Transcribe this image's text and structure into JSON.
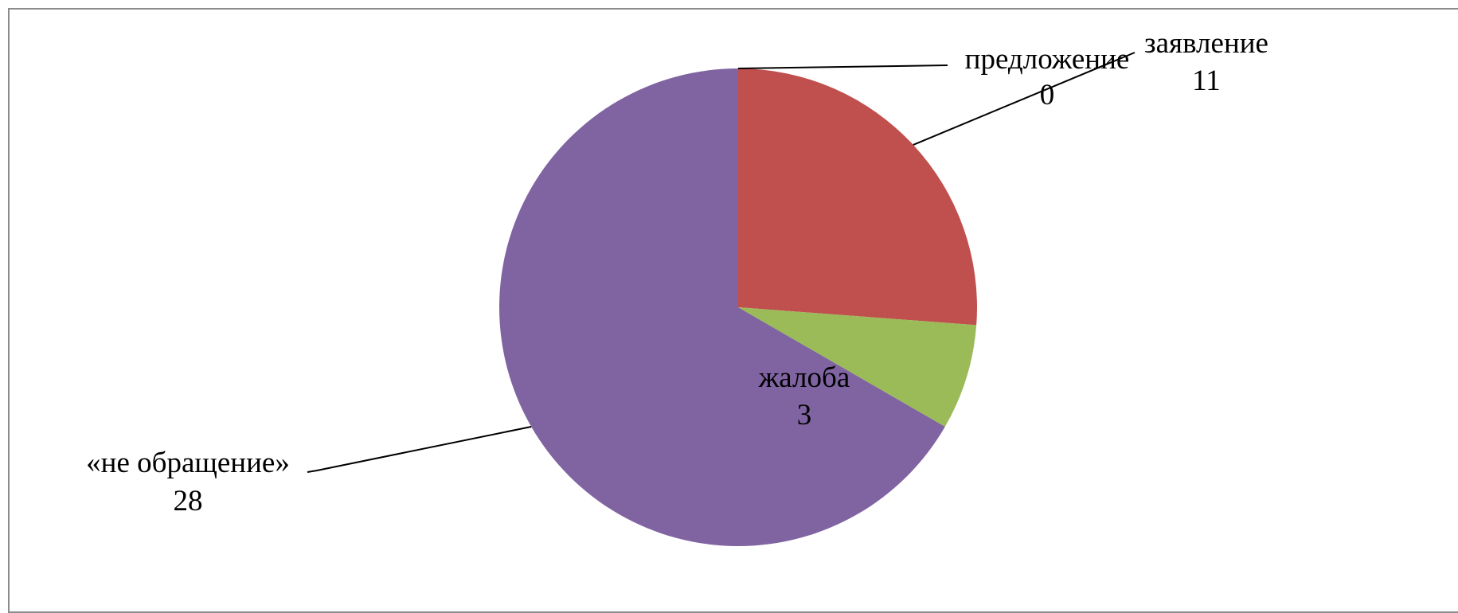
{
  "chart_data": {
    "type": "pie",
    "title": "",
    "slices": [
      {
        "label": "предложение",
        "value": 0,
        "color": "#4F81BD"
      },
      {
        "label": "заявление",
        "value": 11,
        "color": "#C0504D"
      },
      {
        "label": "жалоба",
        "value": 3,
        "color": "#9BBB59"
      },
      {
        "label": "«не обращение»",
        "value": 28,
        "color": "#8064A2"
      }
    ],
    "legend": "none",
    "data_labels": "category and value"
  }
}
